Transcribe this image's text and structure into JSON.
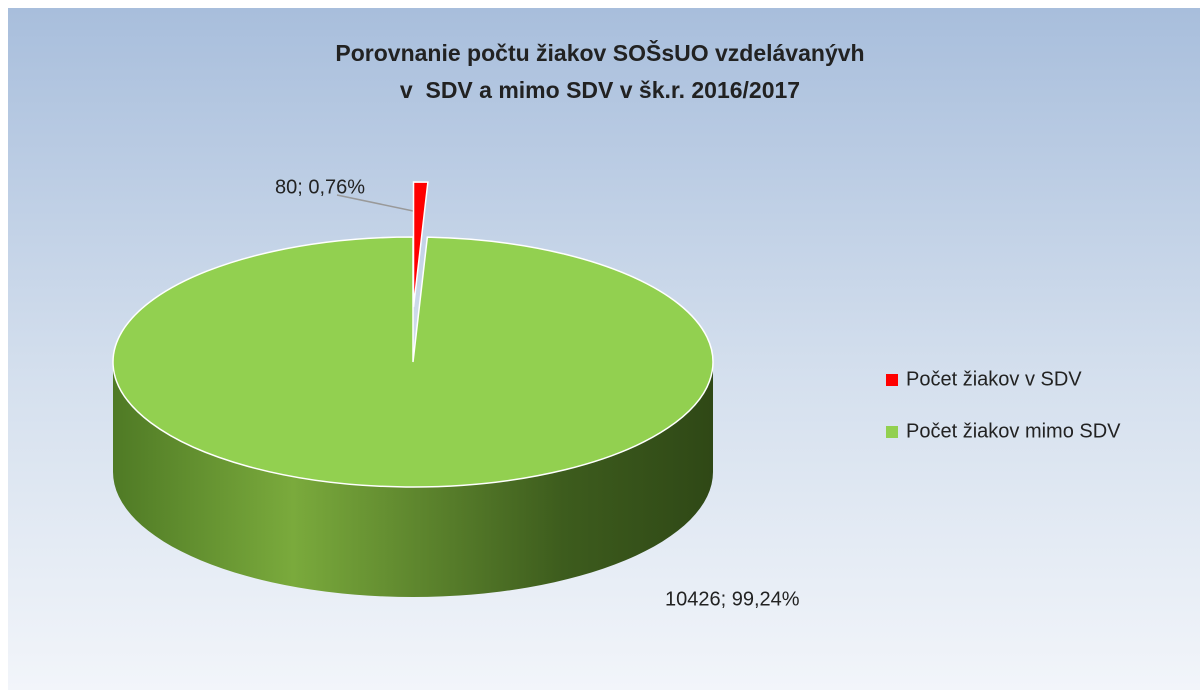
{
  "chart_data": {
    "type": "pie",
    "title": [
      "Porovnanie počtu žiakov SOŠsUO vzdelávanývh",
      "v  SDV a mimo SDV v šk.r. 2016/2017"
    ],
    "categories": [
      "Počet žiakov v SDV",
      "Počet žiakov mimo SDV"
    ],
    "values": [
      80,
      10426
    ],
    "value_labels": [
      "80; 0,76%",
      "10426; 99,24%"
    ],
    "colors": [
      "#ff0000",
      "#92d050"
    ],
    "legend": "right"
  }
}
